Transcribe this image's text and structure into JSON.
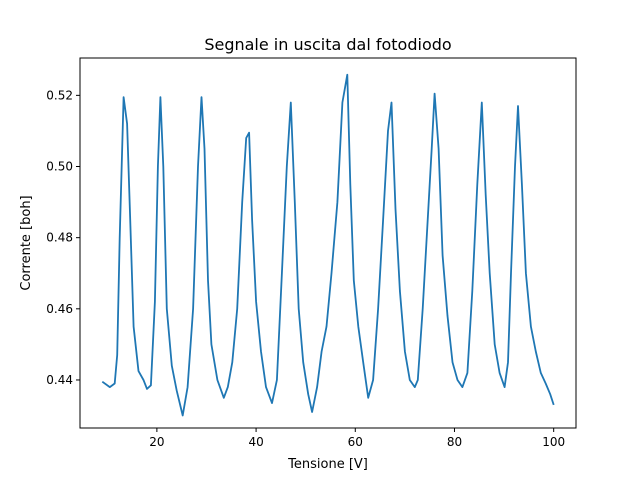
{
  "chart_data": {
    "type": "line",
    "title": "Segnale in uscita dal fotodiodo",
    "xlabel": "Tensione [V]",
    "ylabel": "Corrente [boh]",
    "xlim": [
      4.5,
      104.5
    ],
    "ylim": [
      0.4265,
      0.5305
    ],
    "xticks": [
      20,
      40,
      60,
      80,
      100
    ],
    "yticks": [
      0.44,
      0.46,
      0.48,
      0.5,
      0.52
    ],
    "xtick_labels": [
      "20",
      "40",
      "60",
      "80",
      "100"
    ],
    "ytick_labels": [
      "0.44",
      "0.46",
      "0.48",
      "0.50",
      "0.52"
    ],
    "grid": false,
    "series": [
      {
        "color": "#1f77b4",
        "points": [
          [
            9.0,
            0.4395
          ],
          [
            10.5,
            0.438
          ],
          [
            11.5,
            0.439
          ],
          [
            12.0,
            0.447
          ],
          [
            12.5,
            0.48
          ],
          [
            13.3,
            0.5195
          ],
          [
            14.0,
            0.512
          ],
          [
            14.6,
            0.486
          ],
          [
            15.3,
            0.455
          ],
          [
            16.3,
            0.4425
          ],
          [
            17.3,
            0.44
          ],
          [
            18.0,
            0.4375
          ],
          [
            18.8,
            0.4385
          ],
          [
            19.6,
            0.462
          ],
          [
            20.2,
            0.5
          ],
          [
            20.7,
            0.5195
          ],
          [
            21.3,
            0.5
          ],
          [
            22.0,
            0.46
          ],
          [
            23.0,
            0.444
          ],
          [
            24.0,
            0.437
          ],
          [
            25.2,
            0.43
          ],
          [
            26.2,
            0.438
          ],
          [
            27.3,
            0.46
          ],
          [
            28.3,
            0.5
          ],
          [
            29.0,
            0.5195
          ],
          [
            29.6,
            0.505
          ],
          [
            30.3,
            0.468
          ],
          [
            31.0,
            0.45
          ],
          [
            32.2,
            0.44
          ],
          [
            33.5,
            0.435
          ],
          [
            34.3,
            0.438
          ],
          [
            35.2,
            0.445
          ],
          [
            36.2,
            0.46
          ],
          [
            37.2,
            0.49
          ],
          [
            38.0,
            0.508
          ],
          [
            38.6,
            0.5095
          ],
          [
            39.2,
            0.485
          ],
          [
            40.0,
            0.462
          ],
          [
            41.0,
            0.448
          ],
          [
            42.0,
            0.438
          ],
          [
            43.2,
            0.4335
          ],
          [
            44.2,
            0.44
          ],
          [
            45.2,
            0.47
          ],
          [
            46.2,
            0.5
          ],
          [
            47.0,
            0.518
          ],
          [
            47.8,
            0.49
          ],
          [
            48.6,
            0.46
          ],
          [
            49.5,
            0.445
          ],
          [
            50.5,
            0.436
          ],
          [
            51.3,
            0.431
          ],
          [
            52.3,
            0.438
          ],
          [
            53.2,
            0.448
          ],
          [
            54.2,
            0.455
          ],
          [
            55.2,
            0.47
          ],
          [
            56.4,
            0.49
          ],
          [
            57.4,
            0.518
          ],
          [
            58.4,
            0.5258
          ],
          [
            59.0,
            0.495
          ],
          [
            59.7,
            0.468
          ],
          [
            60.6,
            0.455
          ],
          [
            61.6,
            0.445
          ],
          [
            62.6,
            0.435
          ],
          [
            63.6,
            0.44
          ],
          [
            64.6,
            0.46
          ],
          [
            65.6,
            0.485
          ],
          [
            66.6,
            0.51
          ],
          [
            67.3,
            0.518
          ],
          [
            68.1,
            0.488
          ],
          [
            69.0,
            0.465
          ],
          [
            70.0,
            0.448
          ],
          [
            71.0,
            0.44
          ],
          [
            72.0,
            0.438
          ],
          [
            72.6,
            0.44
          ],
          [
            73.6,
            0.46
          ],
          [
            74.6,
            0.485
          ],
          [
            75.4,
            0.505
          ],
          [
            76.0,
            0.5205
          ],
          [
            76.8,
            0.505
          ],
          [
            77.6,
            0.475
          ],
          [
            78.6,
            0.458
          ],
          [
            79.6,
            0.445
          ],
          [
            80.6,
            0.44
          ],
          [
            81.6,
            0.438
          ],
          [
            82.6,
            0.442
          ],
          [
            83.6,
            0.465
          ],
          [
            84.6,
            0.495
          ],
          [
            85.5,
            0.518
          ],
          [
            86.3,
            0.492
          ],
          [
            87.1,
            0.47
          ],
          [
            88.1,
            0.45
          ],
          [
            89.1,
            0.442
          ],
          [
            90.1,
            0.438
          ],
          [
            90.8,
            0.445
          ],
          [
            91.4,
            0.47
          ],
          [
            92.2,
            0.5
          ],
          [
            92.8,
            0.517
          ],
          [
            93.6,
            0.495
          ],
          [
            94.4,
            0.47
          ],
          [
            95.4,
            0.455
          ],
          [
            96.4,
            0.448
          ],
          [
            97.4,
            0.442
          ],
          [
            98.4,
            0.439
          ],
          [
            99.3,
            0.436
          ],
          [
            100.0,
            0.433
          ]
        ]
      }
    ]
  }
}
